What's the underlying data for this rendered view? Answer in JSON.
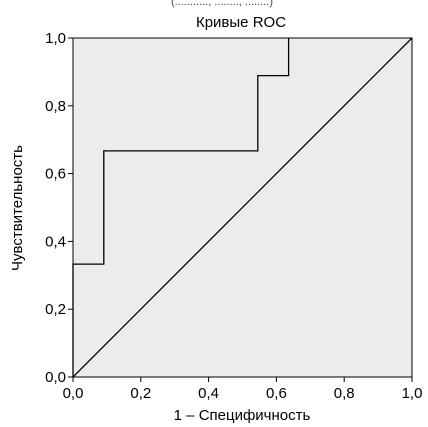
{
  "header_fragment": "(...........,  ........,  ........)",
  "chart_data": {
    "type": "line",
    "title": "Кривые ROC",
    "xlabel": "1 – Специфичность",
    "ylabel": "Чувствительность",
    "xlim": [
      0,
      1
    ],
    "ylim": [
      0,
      1
    ],
    "x_ticks": [
      "0,0",
      "0,2",
      "0,4",
      "0,6",
      "0,8",
      "1,0"
    ],
    "y_ticks": [
      "0,0",
      "0,2",
      "0,4",
      "0,6",
      "0,8",
      "1,0"
    ],
    "grid": false,
    "legend": "none",
    "plot_background": "#ececec",
    "series": [
      {
        "type": "step",
        "x": [
          0.0,
          0.0,
          0.091,
          0.091,
          0.545,
          0.545,
          0.636,
          0.636
        ],
        "y": [
          0.0,
          0.333,
          0.333,
          0.667,
          0.667,
          0.889,
          0.889,
          1.0
        ]
      },
      {
        "type": "reference",
        "x": [
          0,
          1
        ],
        "y": [
          0,
          1
        ]
      }
    ]
  }
}
